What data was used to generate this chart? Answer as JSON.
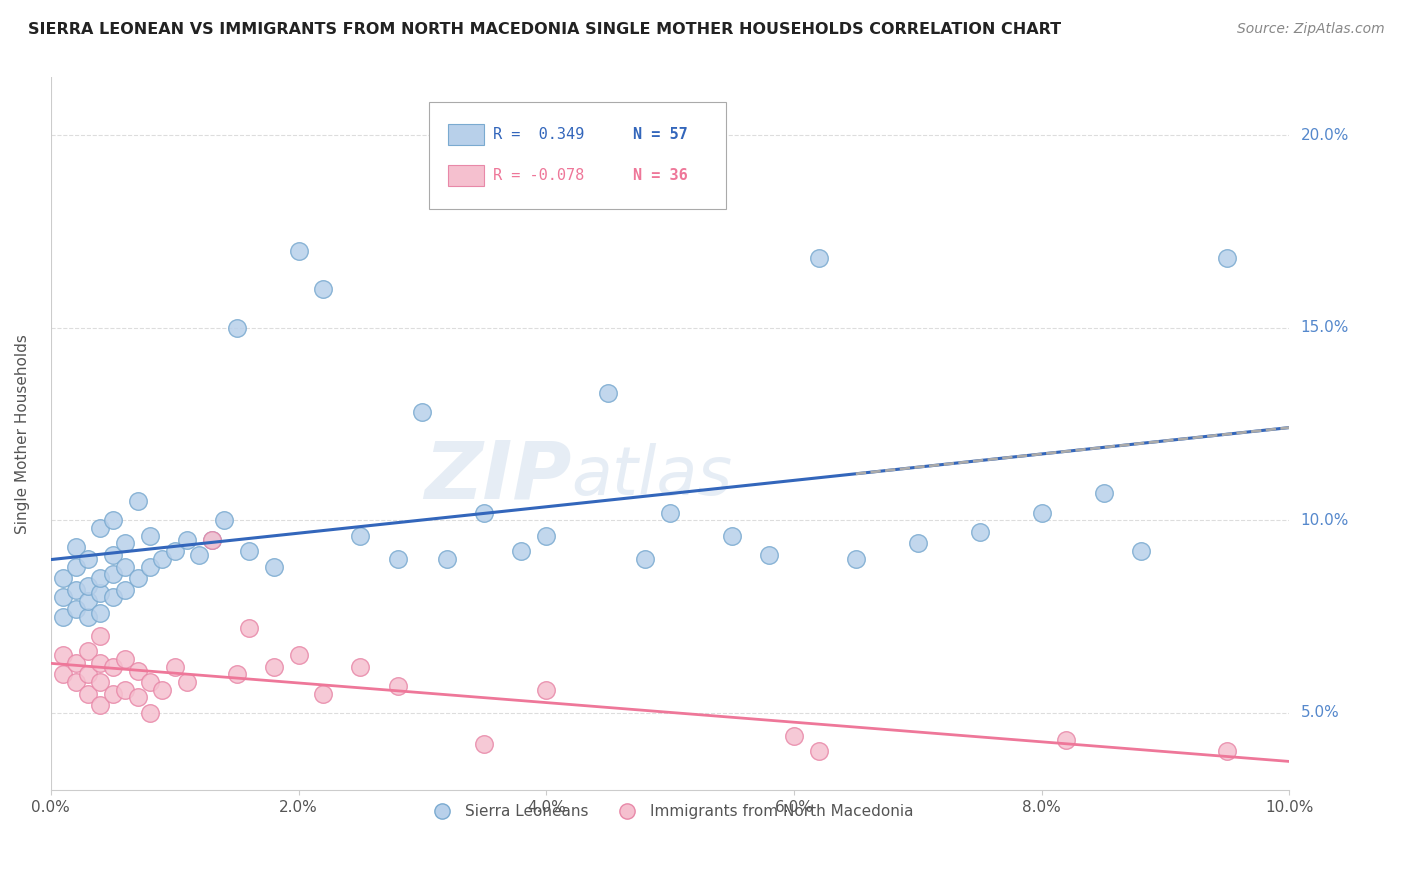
{
  "title": "SIERRA LEONEAN VS IMMIGRANTS FROM NORTH MACEDONIA SINGLE MOTHER HOUSEHOLDS CORRELATION CHART",
  "source": "Source: ZipAtlas.com",
  "ylabel": "Single Mother Households",
  "watermark": "ZIPatlas",
  "legend_r1": "R =  0.349",
  "legend_n1": "N = 57",
  "legend_r2": "R = -0.078",
  "legend_n2": "N = 36",
  "series1_color": "#b8d0ea",
  "series1_edge": "#7aaad0",
  "series2_color": "#f5c0cf",
  "series2_edge": "#e888a8",
  "line1_color": "#3366bb",
  "line2_color": "#ee7799",
  "line2_dash_color": "#aaaaaa",
  "tick_color": "#5588cc",
  "xlim": [
    0.0,
    0.1
  ],
  "ylim": [
    0.03,
    0.215
  ],
  "xticks": [
    0.0,
    0.02,
    0.04,
    0.06,
    0.08,
    0.1
  ],
  "yticks": [
    0.05,
    0.1,
    0.15,
    0.2
  ],
  "xticklabels": [
    "0.0%",
    "2.0%",
    "4.0%",
    "6.0%",
    "8.0%",
    "10.0%"
  ],
  "yticklabels": [
    "5.0%",
    "10.0%",
    "15.0%",
    "20.0%"
  ],
  "sierra_x": [
    0.001,
    0.001,
    0.001,
    0.002,
    0.002,
    0.002,
    0.002,
    0.003,
    0.003,
    0.003,
    0.003,
    0.004,
    0.004,
    0.004,
    0.004,
    0.005,
    0.005,
    0.005,
    0.005,
    0.006,
    0.006,
    0.006,
    0.007,
    0.007,
    0.008,
    0.008,
    0.009,
    0.01,
    0.011,
    0.012,
    0.013,
    0.014,
    0.015,
    0.016,
    0.018,
    0.02,
    0.022,
    0.025,
    0.028,
    0.03,
    0.032,
    0.035,
    0.038,
    0.04,
    0.045,
    0.048,
    0.05,
    0.055,
    0.058,
    0.062,
    0.065,
    0.07,
    0.075,
    0.08,
    0.085,
    0.088,
    0.095
  ],
  "sierra_y": [
    0.075,
    0.08,
    0.085,
    0.077,
    0.082,
    0.088,
    0.093,
    0.075,
    0.079,
    0.083,
    0.09,
    0.076,
    0.081,
    0.085,
    0.098,
    0.08,
    0.086,
    0.091,
    0.1,
    0.082,
    0.088,
    0.094,
    0.085,
    0.105,
    0.088,
    0.096,
    0.09,
    0.092,
    0.095,
    0.091,
    0.095,
    0.1,
    0.15,
    0.092,
    0.088,
    0.17,
    0.16,
    0.096,
    0.09,
    0.128,
    0.09,
    0.102,
    0.092,
    0.096,
    0.133,
    0.09,
    0.102,
    0.096,
    0.091,
    0.168,
    0.09,
    0.094,
    0.097,
    0.102,
    0.107,
    0.092,
    0.168
  ],
  "mac_x": [
    0.001,
    0.001,
    0.002,
    0.002,
    0.003,
    0.003,
    0.003,
    0.004,
    0.004,
    0.004,
    0.004,
    0.005,
    0.005,
    0.006,
    0.006,
    0.007,
    0.007,
    0.008,
    0.008,
    0.009,
    0.01,
    0.011,
    0.013,
    0.015,
    0.016,
    0.018,
    0.02,
    0.022,
    0.025,
    0.028,
    0.035,
    0.04,
    0.06,
    0.062,
    0.082,
    0.095
  ],
  "mac_y": [
    0.06,
    0.065,
    0.058,
    0.063,
    0.055,
    0.06,
    0.066,
    0.052,
    0.058,
    0.063,
    0.07,
    0.055,
    0.062,
    0.056,
    0.064,
    0.054,
    0.061,
    0.05,
    0.058,
    0.056,
    0.062,
    0.058,
    0.095,
    0.06,
    0.072,
    0.062,
    0.065,
    0.055,
    0.062,
    0.057,
    0.042,
    0.056,
    0.044,
    0.04,
    0.043,
    0.04
  ]
}
